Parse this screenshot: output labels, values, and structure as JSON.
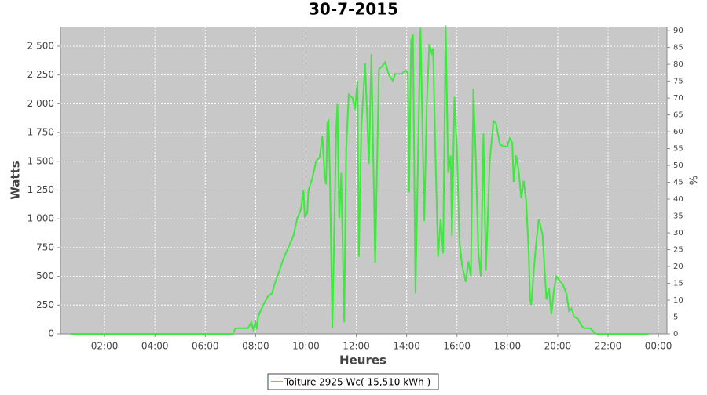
{
  "chart_data": {
    "type": "line",
    "title": "30-7-2015",
    "x_label": "Heures",
    "y_label": "Watts",
    "y2_label": "%",
    "x": [
      0.66,
      6.0,
      7.1,
      7.2,
      7.7,
      7.83,
      7.9,
      8.0,
      8.05,
      8.1,
      8.3,
      8.5,
      8.65,
      8.75,
      8.9,
      9.1,
      9.3,
      9.5,
      9.65,
      9.8,
      9.9,
      9.95,
      10.05,
      10.1,
      10.25,
      10.4,
      10.55,
      10.65,
      10.75,
      10.8,
      10.85,
      10.9,
      10.95,
      11.05,
      11.2,
      11.25,
      11.32,
      11.4,
      11.52,
      11.6,
      11.7,
      11.85,
      11.95,
      12.05,
      12.1,
      12.2,
      12.35,
      12.5,
      12.6,
      12.75,
      12.9,
      13.05,
      13.15,
      13.3,
      13.45,
      13.55,
      13.8,
      13.95,
      14.05,
      14.1,
      14.18,
      14.25,
      14.35,
      14.55,
      14.7,
      14.8,
      14.9,
      15.0,
      15.05,
      15.15,
      15.25,
      15.35,
      15.45,
      15.55,
      15.65,
      15.75,
      15.8,
      15.9,
      16.0,
      16.1,
      16.2,
      16.35,
      16.45,
      16.55,
      16.65,
      16.75,
      16.85,
      16.95,
      17.05,
      17.15,
      17.3,
      17.45,
      17.55,
      17.7,
      17.85,
      18.0,
      18.1,
      18.2,
      18.25,
      18.35,
      18.45,
      18.55,
      18.65,
      18.75,
      18.85,
      18.9,
      18.95,
      19.05,
      19.15,
      19.25,
      19.4,
      19.55,
      19.65,
      19.75,
      19.85,
      19.95,
      20.05,
      20.2,
      20.35,
      20.45,
      20.55,
      20.65,
      20.8,
      20.95,
      21.05,
      21.3,
      21.45,
      21.55,
      23.6
    ],
    "series": [
      {
        "name": "Toiture 2925 Wc( 15,510 kWh )",
        "color": "#3ee83e",
        "values": [
          0,
          0,
          0,
          50,
          50,
          100,
          40,
          100,
          40,
          150,
          250,
          330,
          350,
          430,
          520,
          650,
          750,
          850,
          1000,
          1080,
          1250,
          1020,
          1050,
          1250,
          1350,
          1500,
          1540,
          1720,
          1350,
          1300,
          1830,
          1850,
          1400,
          50,
          1750,
          2000,
          1000,
          1400,
          100,
          1600,
          2080,
          2050,
          1950,
          2200,
          670,
          1800,
          2350,
          1480,
          2430,
          620,
          2300,
          2330,
          2360,
          2250,
          2200,
          2260,
          2260,
          2290,
          2270,
          1230,
          2550,
          2600,
          350,
          2660,
          980,
          2000,
          2520,
          2440,
          2480,
          1500,
          670,
          1000,
          700,
          2680,
          1400,
          1550,
          850,
          2060,
          1600,
          800,
          600,
          450,
          630,
          500,
          2130,
          1500,
          700,
          500,
          1740,
          550,
          1500,
          1850,
          1830,
          1650,
          1630,
          1630,
          1700,
          1660,
          1320,
          1550,
          1420,
          1180,
          1330,
          1150,
          700,
          300,
          250,
          550,
          800,
          1000,
          860,
          300,
          400,
          170,
          380,
          500,
          470,
          430,
          350,
          200,
          220,
          150,
          130,
          70,
          50,
          50,
          10,
          0,
          0
        ]
      }
    ],
    "xlim": [
      0.25,
      24.34
    ],
    "xticks": [
      {
        "value": 2,
        "label": "02:00"
      },
      {
        "value": 4,
        "label": "04:00"
      },
      {
        "value": 6,
        "label": "06:00"
      },
      {
        "value": 8,
        "label": "08:00"
      },
      {
        "value": 10,
        "label": "10:00"
      },
      {
        "value": 12,
        "label": "12:00"
      },
      {
        "value": 14,
        "label": "14:00"
      },
      {
        "value": 16,
        "label": "16:00"
      },
      {
        "value": 18,
        "label": "18:00"
      },
      {
        "value": 20,
        "label": "20:00"
      },
      {
        "value": 22,
        "label": "22:00"
      },
      {
        "value": 24,
        "label": "00:00"
      }
    ],
    "ylim": [
      0,
      2670
    ],
    "yticks": [
      0,
      250,
      500,
      750,
      {
        "value": 1000,
        "label": "1 000"
      },
      {
        "value": 1250,
        "label": "1 250"
      },
      {
        "value": 1500,
        "label": "1 500"
      },
      {
        "value": 1750,
        "label": "1 750"
      },
      {
        "value": 2000,
        "label": "2 000"
      },
      {
        "value": 2250,
        "label": "2 250"
      },
      {
        "value": 2500,
        "label": "2 500"
      }
    ],
    "y2lim": [
      0,
      91.2
    ],
    "y2ticks": [
      0,
      5,
      10,
      15,
      20,
      25,
      30,
      35,
      40,
      45,
      50,
      55,
      60,
      65,
      70,
      75,
      80,
      85,
      90
    ],
    "grid": true,
    "legend": "bottom"
  }
}
